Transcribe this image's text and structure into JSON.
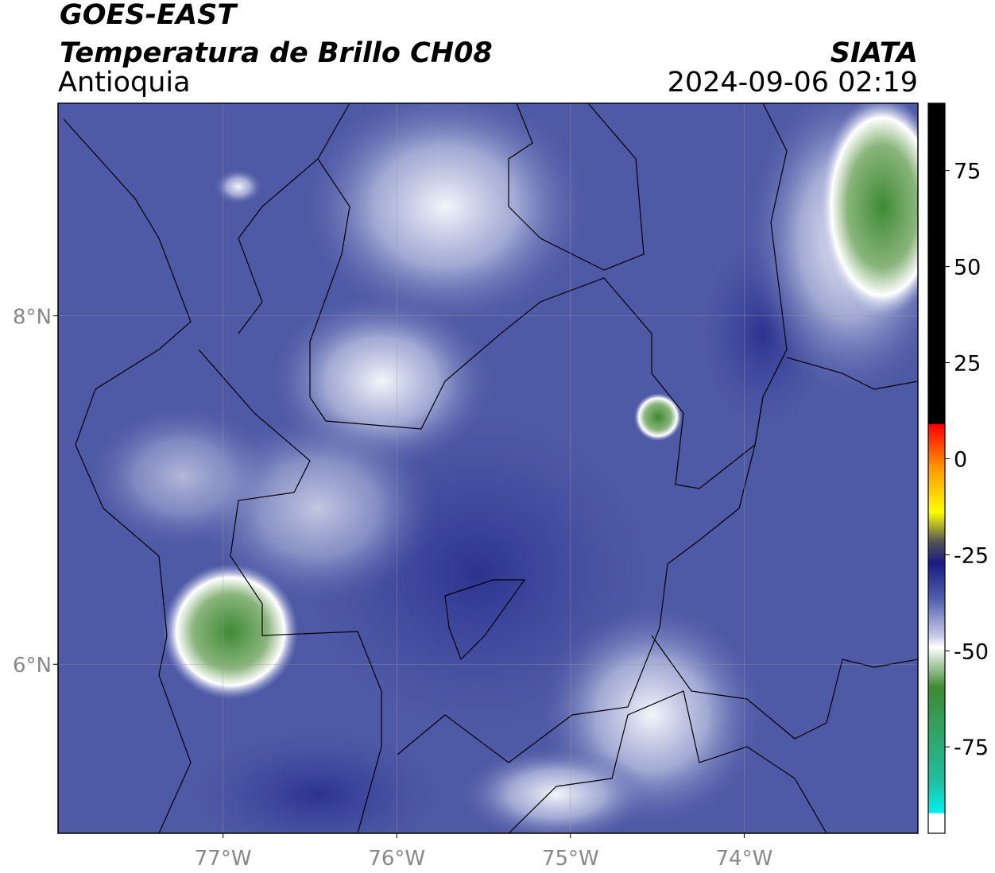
{
  "header": {
    "title": "GOES-EAST",
    "subtitle": "Temperatura de Brillo CH08",
    "region": "Antioquia",
    "source": "SIATA",
    "datetime": "2024-09-06 02:19"
  },
  "map": {
    "xlim": [
      -77.95,
      -73.0
    ],
    "ylim": [
      5.03,
      9.22
    ],
    "xticks": [
      {
        "value": -77,
        "label": "77°W"
      },
      {
        "value": -76,
        "label": "76°W"
      },
      {
        "value": -75,
        "label": "75°W"
      },
      {
        "value": -74,
        "label": "74°W"
      }
    ],
    "yticks": [
      {
        "value": 8,
        "label": "8°N"
      },
      {
        "value": 6,
        "label": "6°N"
      }
    ],
    "grid": true
  },
  "colorbar": {
    "lim": [
      -97.5,
      92.5
    ],
    "ticks": [
      75,
      50,
      25,
      0,
      -25,
      -50,
      -75
    ]
  }
}
